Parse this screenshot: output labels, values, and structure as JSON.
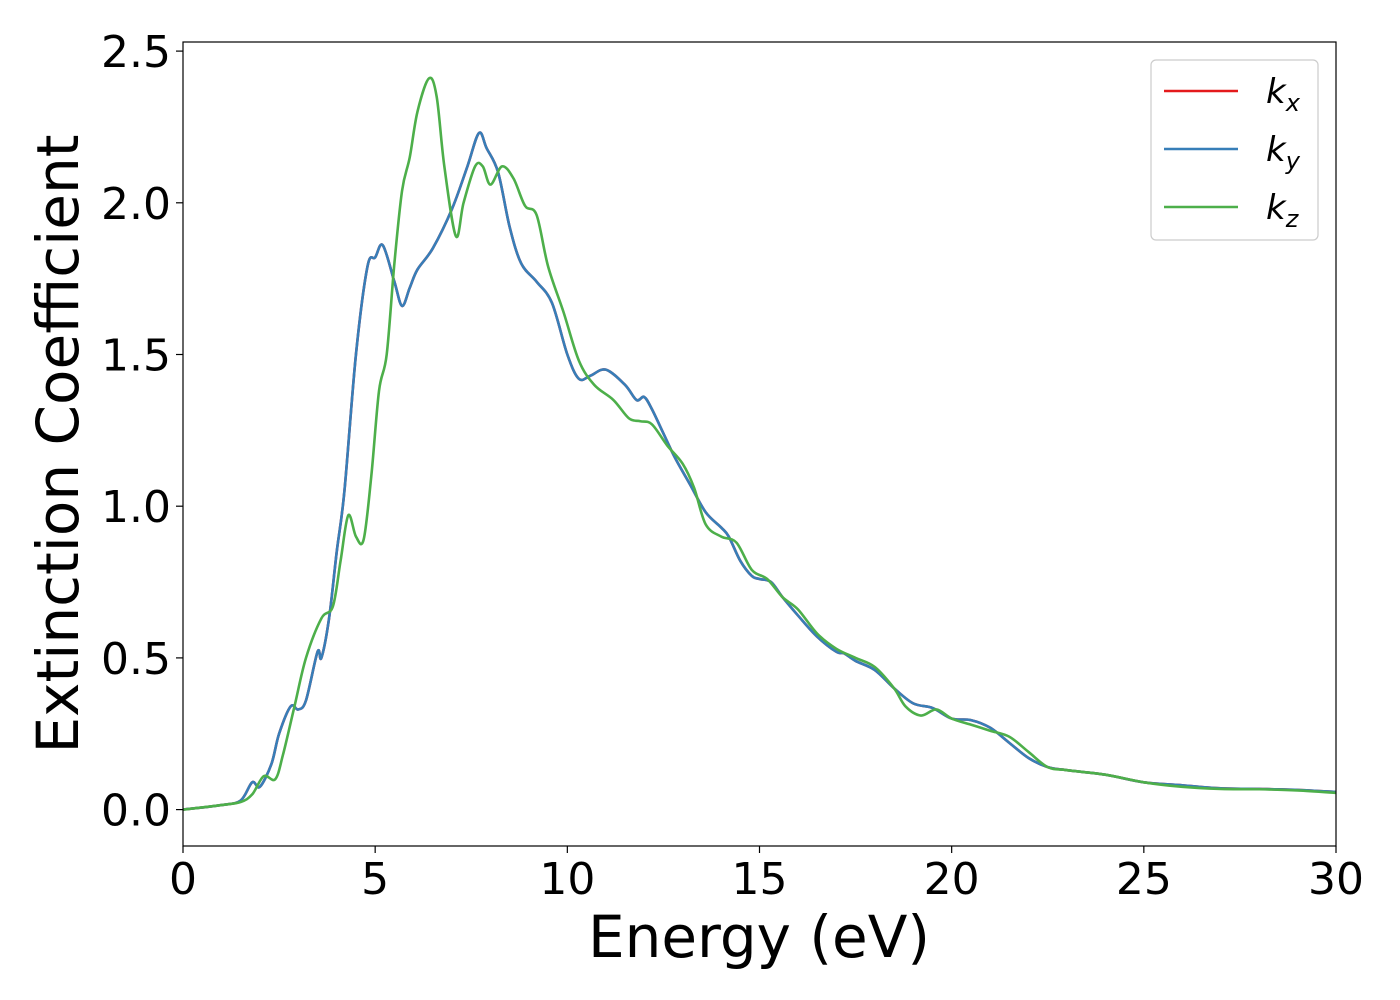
{
  "chart_data": {
    "type": "line",
    "title": "",
    "xlabel": "Energy (eV)",
    "ylabel": "Extinction Coefficient",
    "xlim": [
      0,
      30
    ],
    "ylim": [
      -0.12,
      2.53
    ],
    "xticks": [
      0,
      5,
      10,
      15,
      20,
      25,
      30
    ],
    "xtick_labels": [
      "0",
      "5",
      "10",
      "15",
      "20",
      "25",
      "30"
    ],
    "yticks": [
      0.0,
      0.5,
      1.0,
      1.5,
      2.0,
      2.5
    ],
    "ytick_labels": [
      "0.0",
      "0.5",
      "1.0",
      "1.5",
      "2.0",
      "2.5"
    ],
    "grid": false,
    "legend_position": "top-right",
    "series": [
      {
        "name": "k",
        "subscript": "x",
        "color": "#e41a1c",
        "x": [
          0,
          1,
          1.5,
          1.8,
          2.0,
          2.3,
          2.5,
          2.8,
          3.0,
          3.2,
          3.5,
          3.6,
          3.8,
          4.0,
          4.2,
          4.5,
          4.8,
          5.0,
          5.2,
          5.5,
          5.7,
          5.9,
          6.1,
          6.5,
          7.0,
          7.4,
          7.7,
          7.9,
          8.2,
          8.5,
          8.8,
          9.2,
          9.6,
          10.0,
          10.3,
          10.6,
          11.0,
          11.5,
          11.8,
          12.0,
          12.2,
          12.5,
          12.8,
          13.2,
          13.6,
          14.0,
          14.2,
          14.5,
          14.8,
          15.0,
          15.3,
          15.6,
          16.0,
          16.5,
          17.0,
          17.2,
          17.5,
          18.0,
          18.5,
          19.0,
          19.5,
          20.0,
          20.5,
          21.0,
          21.5,
          22.0,
          22.5,
          23.0,
          24.0,
          25.0,
          26.0,
          27.0,
          28.0,
          29.0,
          30.0
        ],
        "values": [
          0.0,
          0.015,
          0.03,
          0.09,
          0.075,
          0.15,
          0.25,
          0.34,
          0.33,
          0.36,
          0.52,
          0.5,
          0.63,
          0.85,
          1.05,
          1.5,
          1.79,
          1.82,
          1.86,
          1.74,
          1.66,
          1.72,
          1.78,
          1.85,
          1.98,
          2.12,
          2.23,
          2.18,
          2.1,
          1.92,
          1.8,
          1.74,
          1.67,
          1.5,
          1.42,
          1.43,
          1.45,
          1.4,
          1.35,
          1.36,
          1.32,
          1.24,
          1.16,
          1.07,
          0.98,
          0.93,
          0.9,
          0.82,
          0.77,
          0.76,
          0.75,
          0.7,
          0.64,
          0.57,
          0.52,
          0.515,
          0.49,
          0.46,
          0.4,
          0.35,
          0.335,
          0.3,
          0.295,
          0.27,
          0.22,
          0.17,
          0.14,
          0.13,
          0.115,
          0.09,
          0.08,
          0.07,
          0.068,
          0.065,
          0.058
        ]
      },
      {
        "name": "k",
        "subscript": "y",
        "color": "#377eb8",
        "x": [
          0,
          1,
          1.5,
          1.8,
          2.0,
          2.3,
          2.5,
          2.8,
          3.0,
          3.2,
          3.5,
          3.6,
          3.8,
          4.0,
          4.2,
          4.5,
          4.8,
          5.0,
          5.2,
          5.5,
          5.7,
          5.9,
          6.1,
          6.5,
          7.0,
          7.4,
          7.7,
          7.9,
          8.2,
          8.5,
          8.8,
          9.2,
          9.6,
          10.0,
          10.3,
          10.6,
          11.0,
          11.5,
          11.8,
          12.0,
          12.2,
          12.5,
          12.8,
          13.2,
          13.6,
          14.0,
          14.2,
          14.5,
          14.8,
          15.0,
          15.3,
          15.6,
          16.0,
          16.5,
          17.0,
          17.2,
          17.5,
          18.0,
          18.5,
          19.0,
          19.5,
          20.0,
          20.5,
          21.0,
          21.5,
          22.0,
          22.5,
          23.0,
          24.0,
          25.0,
          26.0,
          27.0,
          28.0,
          29.0,
          30.0
        ],
        "values": [
          0.0,
          0.015,
          0.03,
          0.09,
          0.075,
          0.15,
          0.25,
          0.34,
          0.33,
          0.36,
          0.52,
          0.5,
          0.63,
          0.85,
          1.05,
          1.5,
          1.79,
          1.82,
          1.86,
          1.74,
          1.66,
          1.72,
          1.78,
          1.85,
          1.98,
          2.12,
          2.23,
          2.18,
          2.1,
          1.92,
          1.8,
          1.74,
          1.67,
          1.5,
          1.42,
          1.43,
          1.45,
          1.4,
          1.35,
          1.36,
          1.32,
          1.24,
          1.16,
          1.07,
          0.98,
          0.93,
          0.9,
          0.82,
          0.77,
          0.76,
          0.75,
          0.7,
          0.64,
          0.57,
          0.52,
          0.515,
          0.49,
          0.46,
          0.4,
          0.35,
          0.335,
          0.3,
          0.295,
          0.27,
          0.22,
          0.17,
          0.14,
          0.13,
          0.115,
          0.09,
          0.08,
          0.07,
          0.068,
          0.065,
          0.058
        ]
      },
      {
        "name": "k",
        "subscript": "z",
        "color": "#4daf4a",
        "x": [
          0,
          1,
          1.5,
          1.8,
          2.1,
          2.4,
          2.6,
          2.9,
          3.2,
          3.6,
          3.9,
          4.1,
          4.3,
          4.5,
          4.7,
          4.9,
          5.1,
          5.3,
          5.5,
          5.7,
          5.9,
          6.1,
          6.4,
          6.6,
          6.8,
          7.1,
          7.3,
          7.6,
          7.8,
          8.0,
          8.3,
          8.6,
          8.9,
          9.2,
          9.5,
          9.9,
          10.3,
          10.7,
          11.2,
          11.6,
          11.9,
          12.2,
          12.6,
          13.0,
          13.3,
          13.6,
          14.0,
          14.4,
          14.8,
          15.2,
          15.6,
          16.0,
          16.5,
          17.0,
          17.5,
          18.0,
          18.5,
          18.8,
          19.2,
          19.6,
          20.0,
          20.5,
          21.0,
          21.5,
          22.0,
          22.5,
          23.0,
          24.0,
          25.0,
          26.0,
          27.0,
          28.0,
          29.0,
          30.0
        ],
        "values": [
          0.0,
          0.015,
          0.025,
          0.05,
          0.11,
          0.1,
          0.18,
          0.34,
          0.5,
          0.63,
          0.67,
          0.82,
          0.97,
          0.9,
          0.89,
          1.1,
          1.38,
          1.5,
          1.8,
          2.04,
          2.15,
          2.3,
          2.41,
          2.35,
          2.12,
          1.89,
          2.0,
          2.12,
          2.12,
          2.06,
          2.12,
          2.08,
          1.99,
          1.96,
          1.79,
          1.64,
          1.48,
          1.4,
          1.35,
          1.29,
          1.28,
          1.27,
          1.2,
          1.14,
          1.06,
          0.94,
          0.9,
          0.88,
          0.79,
          0.76,
          0.7,
          0.66,
          0.58,
          0.53,
          0.5,
          0.47,
          0.4,
          0.34,
          0.31,
          0.33,
          0.3,
          0.28,
          0.26,
          0.24,
          0.19,
          0.14,
          0.13,
          0.115,
          0.09,
          0.075,
          0.068,
          0.067,
          0.063,
          0.055
        ]
      }
    ]
  }
}
